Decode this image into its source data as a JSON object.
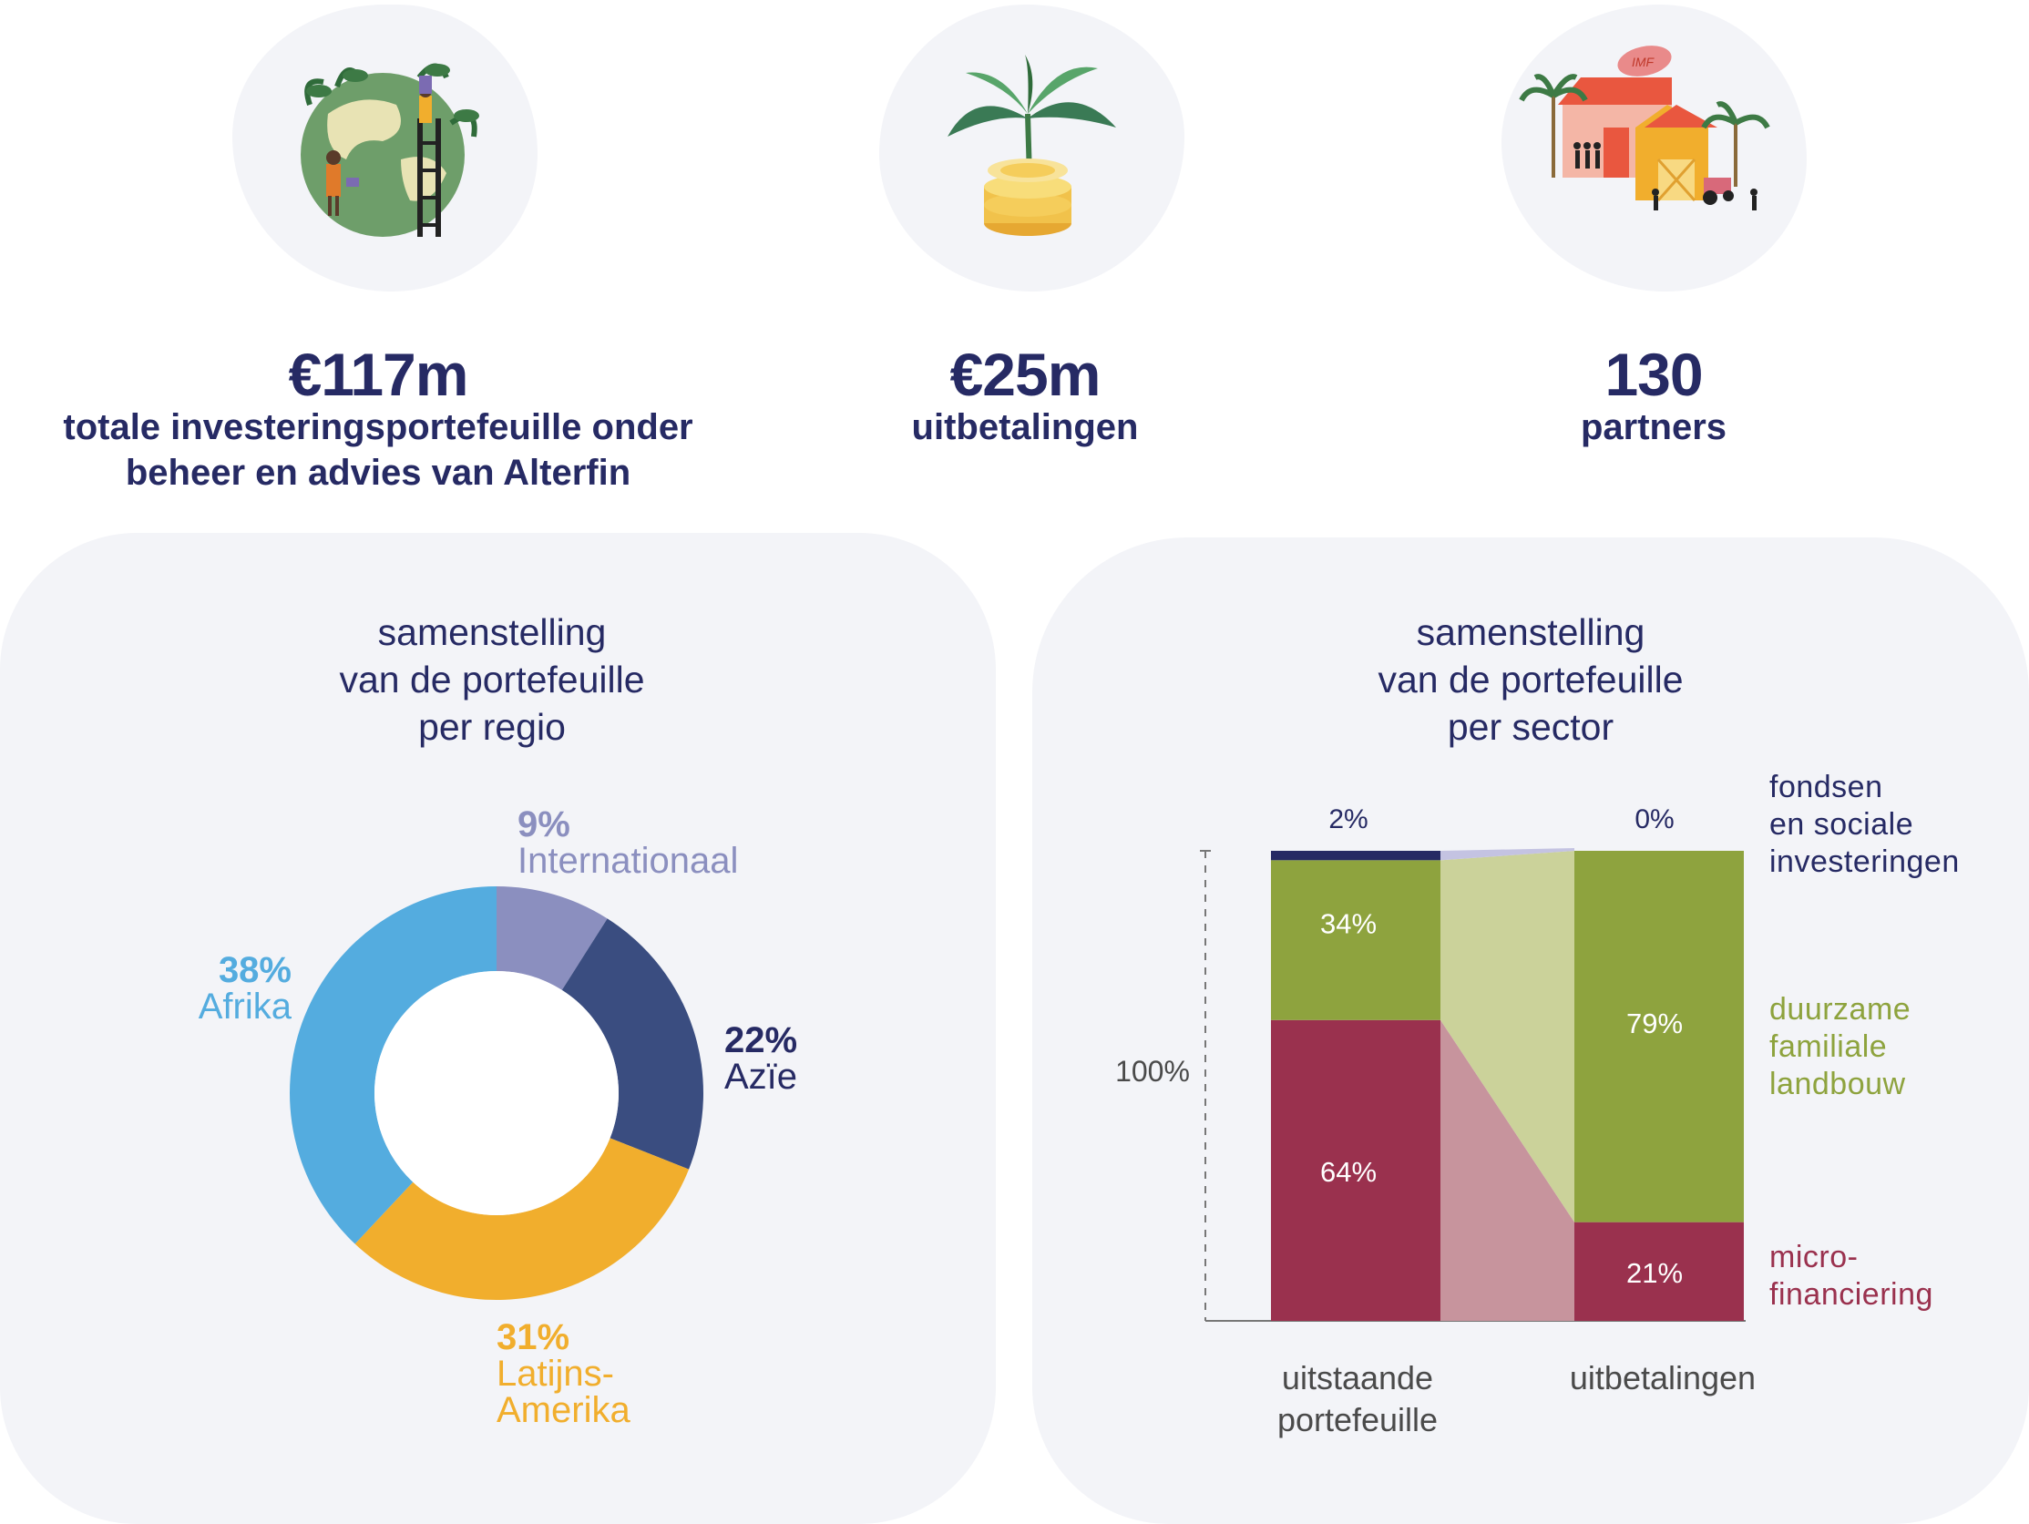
{
  "stats": [
    {
      "value": "€117m",
      "line1": "totale investeringsportefeuille onder",
      "line2": "beheer en advies van Alterfin",
      "icon": "globe-people-plants-icon"
    },
    {
      "value": "€25m",
      "line1": "uitbetalingen",
      "icon": "plant-coins-icon"
    },
    {
      "value": "130",
      "line1": "partners",
      "icon": "buildings-farm-icon",
      "icon_text": "IMF"
    }
  ],
  "region_chart": {
    "title_lines": [
      "samenstelling",
      "van de portefeuille",
      "per regio"
    ]
  },
  "sector_chart": {
    "title_lines": [
      "samenstelling",
      "van de portefeuille",
      "per sector"
    ]
  },
  "chart_data": [
    {
      "type": "pie",
      "donut": true,
      "title": "samenstelling van de portefeuille per regio",
      "slices": [
        {
          "name": "Internationaal",
          "value": 9,
          "label": "9%",
          "color": "#8b8fbf"
        },
        {
          "name": "Azïe",
          "value": 22,
          "label": "22%",
          "color": "#3a4d80"
        },
        {
          "name": "Latijns-Amerika",
          "value": 31,
          "label": "31%",
          "color": "#f1ae2d"
        },
        {
          "name": "Afrika",
          "value": 38,
          "label": "38%",
          "color": "#54acdf"
        }
      ]
    },
    {
      "type": "bar",
      "stacked": true,
      "title": "samenstelling van de portefeuille per sector",
      "ylabel": "100%",
      "categories": [
        "uitstaande portefeuille",
        "uitbetalingen"
      ],
      "category_lines": [
        [
          "uitstaande",
          "portefeuille"
        ],
        [
          "uitbetalingen"
        ]
      ],
      "series": [
        {
          "name": "micro-financiering",
          "label_lines": [
            "micro-",
            "financiering"
          ],
          "values": [
            64,
            21
          ],
          "labels": [
            "64%",
            "21%"
          ],
          "color": "#9a314e",
          "link_color": "#c7949d"
        },
        {
          "name": "duurzame familiale landbouw",
          "label_lines": [
            "duurzame",
            "familiale",
            "landbouw"
          ],
          "values": [
            34,
            79
          ],
          "labels": [
            "34%",
            "79%"
          ],
          "color": "#8ea33e",
          "link_color": "#cbd29a"
        },
        {
          "name": "fondsen en sociale investeringen",
          "label_lines": [
            "fondsen",
            "en sociale",
            "investeringen"
          ],
          "values": [
            2,
            0
          ],
          "labels": [
            "2%",
            "0%"
          ],
          "color": "#262a64",
          "link_color": "#c4c3e2"
        }
      ]
    }
  ]
}
